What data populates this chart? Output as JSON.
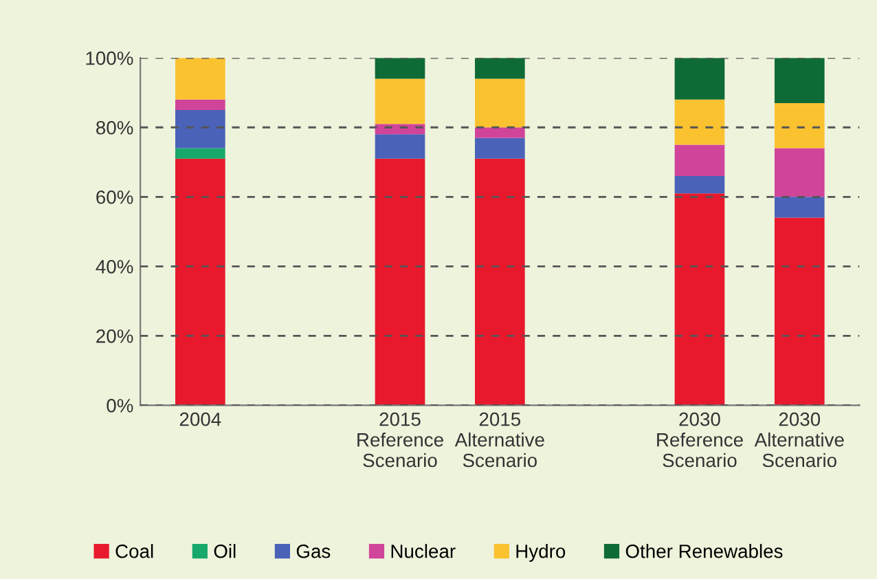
{
  "chart_data": {
    "type": "bar",
    "stacked": true,
    "categories": [
      "2004",
      null,
      "2015\nReference\nScenario",
      "2015\nAlternative\nScenario",
      null,
      "2030\nReference\nScenario",
      "2030\nAlternative\nScenario"
    ],
    "series": [
      {
        "name": "Coal",
        "color": "#e8192c",
        "values": [
          71,
          null,
          71,
          71,
          null,
          61,
          54
        ]
      },
      {
        "name": "Oil",
        "color": "#17a86b",
        "values": [
          3,
          null,
          0,
          0,
          null,
          0,
          0
        ]
      },
      {
        "name": "Gas",
        "color": "#4a62b8",
        "values": [
          11,
          null,
          7,
          6,
          null,
          5,
          6
        ]
      },
      {
        "name": "Nuclear",
        "color": "#d0449a",
        "values": [
          3,
          null,
          3,
          3,
          null,
          9,
          14
        ]
      },
      {
        "name": "Hydro",
        "color": "#fbc230",
        "values": [
          12,
          null,
          13,
          14,
          null,
          13,
          13
        ]
      },
      {
        "name": "Other Renewables",
        "color": "#0f6b35",
        "values": [
          0,
          null,
          6,
          6,
          null,
          12,
          13
        ]
      }
    ],
    "ylim": [
      0,
      100
    ],
    "yticks": [
      {
        "value": 0,
        "label": "0%"
      },
      {
        "value": 20,
        "label": "20%"
      },
      {
        "value": 40,
        "label": "40%"
      },
      {
        "value": 60,
        "label": "60%"
      },
      {
        "value": 80,
        "label": "80%"
      },
      {
        "value": 100,
        "label": "100%"
      }
    ],
    "grid": "y",
    "legend": "bottom"
  }
}
